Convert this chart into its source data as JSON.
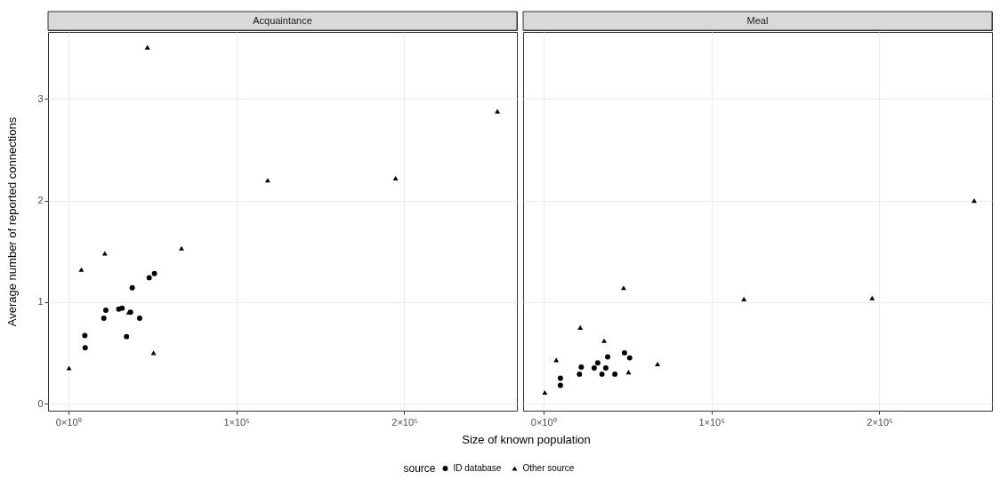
{
  "chart_data": [
    {
      "type": "scatter",
      "title": "Acquaintance",
      "xlabel": "Size of known population",
      "ylabel": "Average number of reported connections",
      "legend_title": "source",
      "legend": "bottom",
      "grid": true,
      "xlim": [
        -12000,
        267000
      ],
      "xticks": [
        {
          "value": 0,
          "label": "0×10⁰"
        },
        {
          "value": 100000,
          "label": "1×10⁵"
        },
        {
          "value": 200000,
          "label": "2×10⁵"
        }
      ],
      "ylim": [
        -0.07,
        3.66
      ],
      "yticks": [
        0,
        1,
        2,
        3
      ],
      "series": [
        {
          "name": "ID database",
          "color": "#000000",
          "marker": "circle",
          "x": [
            48200,
            51300,
            38100,
            22400,
            30100,
            32100,
            37100,
            21200,
            42500,
            9900,
            34700,
            10100
          ],
          "values": [
            1.24,
            1.28,
            1.14,
            0.92,
            0.93,
            0.94,
            0.9,
            0.84,
            0.84,
            0.67,
            0.66,
            0.55
          ]
        },
        {
          "name": "Other source",
          "color": "#000000",
          "marker": "triangle",
          "x": [
            47150,
            255400,
            118700,
            194800,
            67400,
            21800,
            7800,
            500,
            50800,
            36000
          ],
          "values": [
            3.51,
            2.88,
            2.2,
            2.22,
            1.53,
            1.48,
            1.32,
            0.35,
            0.5,
            0.9
          ]
        }
      ]
    },
    {
      "type": "scatter",
      "title": "Meal",
      "grid": true,
      "tick_labels": "x",
      "xlim": [
        -12000,
        267000
      ],
      "xticks": [
        {
          "value": 0,
          "label": "0×10⁰"
        },
        {
          "value": 100000,
          "label": "1×10⁵"
        },
        {
          "value": 200000,
          "label": "2×10⁵"
        }
      ],
      "ylim": [
        -0.07,
        3.66
      ],
      "yticks": [
        0,
        1,
        2,
        3
      ],
      "series": [
        {
          "name": "ID database",
          "color": "#000000",
          "marker": "circle",
          "x": [
            48300,
            51400,
            38300,
            32400,
            30300,
            37200,
            22600,
            21500,
            34900,
            42600,
            10200,
            10200
          ],
          "values": [
            0.5,
            0.45,
            0.46,
            0.4,
            0.35,
            0.35,
            0.36,
            0.29,
            0.29,
            0.29,
            0.25,
            0.18
          ]
        },
        {
          "name": "Other source",
          "color": "#000000",
          "marker": "triangle",
          "x": [
            256400,
            119400,
            195700,
            47800,
            22000,
            36200,
            7700,
            68000,
            50700,
            900
          ],
          "values": [
            2.0,
            1.03,
            1.04,
            1.14,
            0.75,
            0.62,
            0.43,
            0.39,
            0.31,
            0.11
          ]
        }
      ]
    }
  ]
}
